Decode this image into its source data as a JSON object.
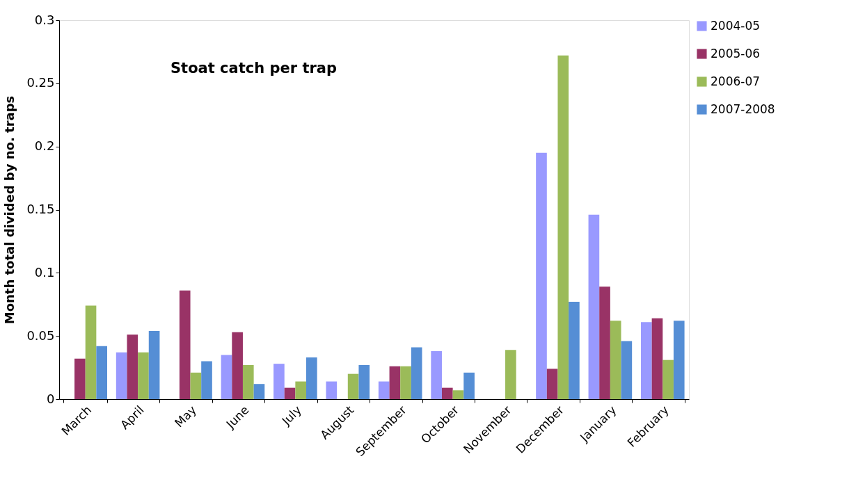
{
  "chart_data": {
    "type": "bar",
    "title": "Stoat catch per trap",
    "ylabel": "Month total divided by no. traps",
    "categories": [
      "March",
      "April",
      "May",
      "June",
      "July",
      "August",
      "September",
      "October",
      "November",
      "December",
      "January",
      "February"
    ],
    "series": [
      {
        "name": "2004-05",
        "color": "#9999ff",
        "values": [
          null,
          0.037,
          null,
          0.035,
          0.028,
          0.014,
          0.014,
          0.038,
          null,
          0.195,
          0.146,
          0.061
        ]
      },
      {
        "name": "2005-06",
        "color": "#993366",
        "values": [
          0.032,
          0.051,
          0.086,
          0.053,
          0.009,
          null,
          0.026,
          0.009,
          null,
          0.024,
          0.089,
          0.064
        ]
      },
      {
        "name": "2006-07",
        "color": "#9bbb59",
        "values": [
          0.074,
          0.037,
          0.021,
          0.027,
          0.014,
          0.02,
          0.026,
          0.007,
          0.039,
          0.272,
          0.062,
          0.031
        ]
      },
      {
        "name": "2007-2008",
        "color": "#558ed5",
        "values": [
          0.042,
          0.054,
          0.03,
          0.012,
          0.033,
          0.027,
          0.041,
          0.021,
          null,
          0.077,
          0.046,
          0.062
        ]
      }
    ],
    "ylim": [
      0,
      0.3
    ],
    "yticks": [
      0,
      0.05,
      0.1,
      0.15,
      0.2,
      0.25,
      0.3
    ],
    "grid": false,
    "legend": "right"
  }
}
